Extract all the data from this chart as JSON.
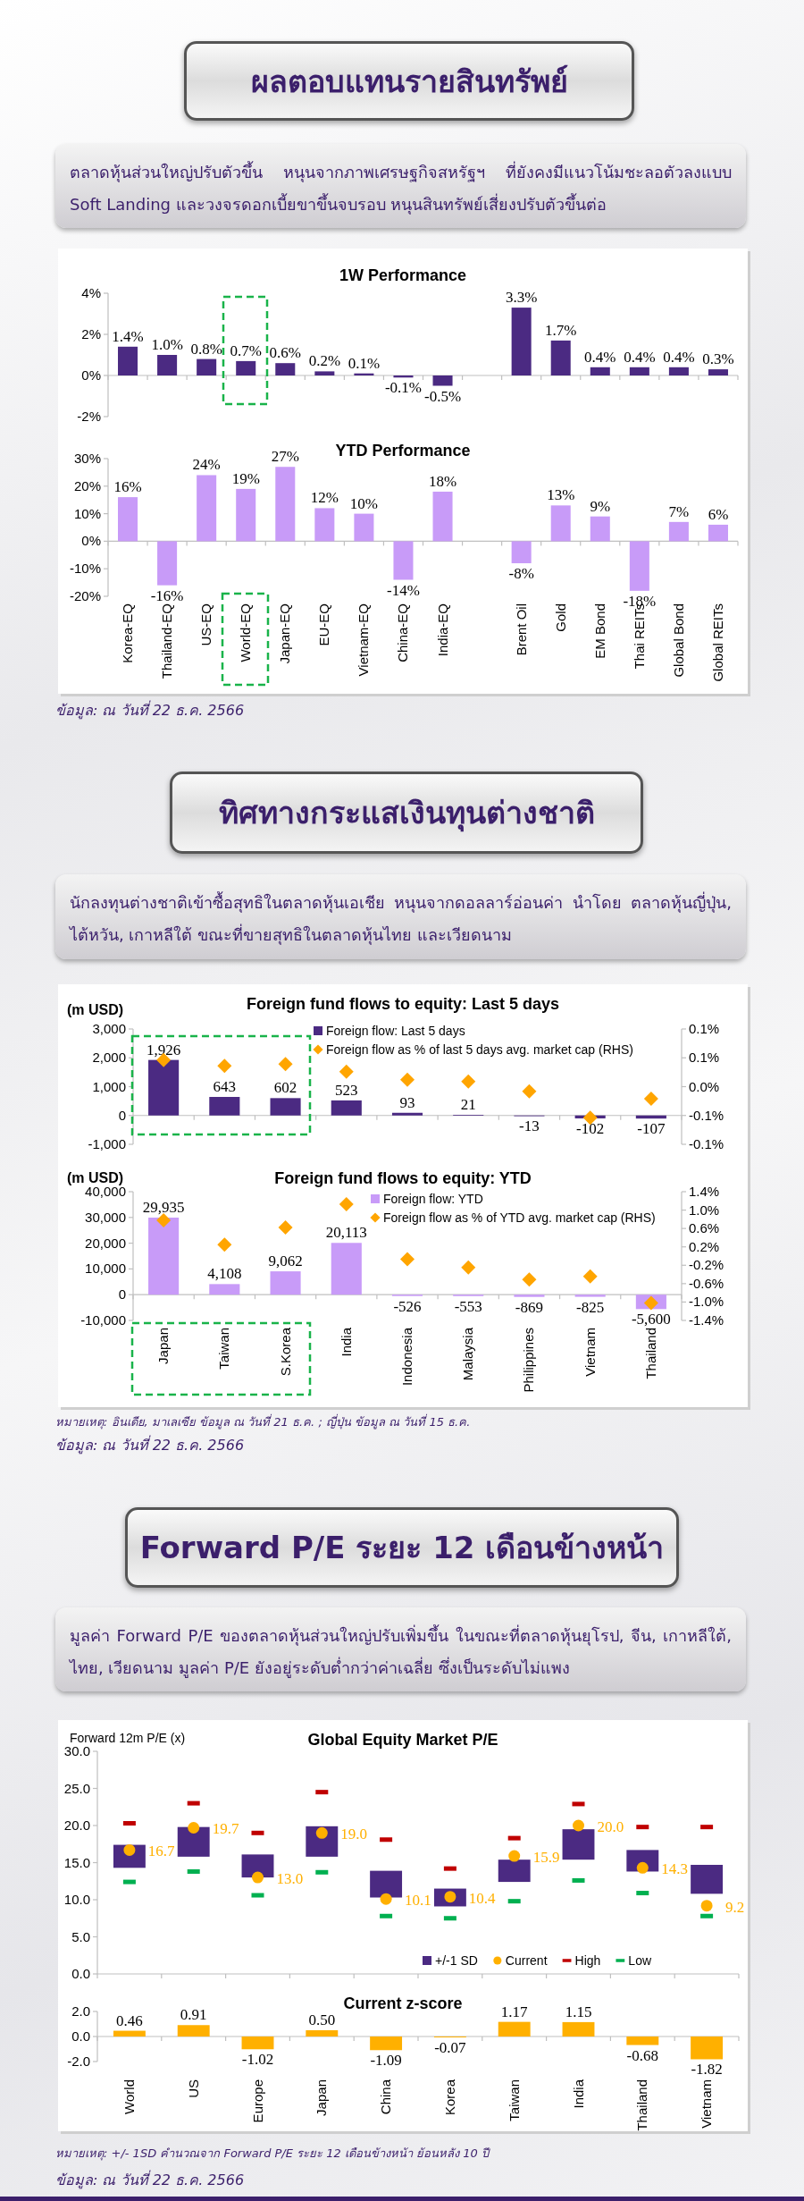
{
  "chart_data": [
    {
      "type": "other",
      "title": "ผลตอบแทนรายสินทรัพย์",
      "subtitle": "ตลาดหุ้นส่วนใหญ่ปรับตัวขึ้น หนุนจากภาพเศรษฐกิจสหรัฐฯ ที่ยังคงมีแนวโน้มชะลอตัวลงแบบ Soft Landing และวงจรดอกเบี้ยขาขึ้นจบรอบ หนุนสินทรัพย์เสี่ยงปรับตัวขึ้นต่อ"
    },
    {
      "type": "bar",
      "title": "1W Performance",
      "values": [
        1.4,
        1.0,
        0.8,
        0.7,
        0.6,
        0.2,
        0.1,
        -0.1,
        -0.5,
        null,
        3.3,
        1.7,
        0.4,
        0.4,
        0.4,
        0.3
      ],
      "value_labels": [
        "1.4%",
        "1.0%",
        "0.8%",
        "0.7%",
        "0.6%",
        "0.2%",
        "0.1%",
        "-0.1%",
        "-0.5%",
        null,
        "3.3%",
        "1.7%",
        "0.4%",
        "0.4%",
        "0.4%",
        "0.3%"
      ],
      "color": "#4b2a82",
      "ylim": [
        -2,
        4
      ],
      "yticks": [
        {
          "value": -2,
          "label": "-2%"
        },
        {
          "value": 0,
          "label": "0%"
        },
        {
          "value": 2,
          "label": "2%"
        },
        {
          "value": 4,
          "label": "4%"
        }
      ],
      "tick_labels": "y"
    },
    {
      "type": "bar",
      "title": "YTD Performance",
      "categories": [
        "Korea-EQ",
        "Thailand-EQ",
        "US-EQ",
        "World-EQ",
        "Japan-EQ",
        "EU-EQ",
        "Vietnam-EQ",
        "China-EQ",
        "India-EQ",
        null,
        "Brent Oil",
        "Gold",
        "EM Bond",
        "Thai REITs",
        "Global Bond",
        "Global REITs"
      ],
      "values": [
        16,
        -16,
        24,
        19,
        27,
        12,
        10,
        -14,
        18,
        null,
        -8,
        13,
        9,
        -18,
        7,
        6
      ],
      "value_labels": [
        "16%",
        "-16%",
        "24%",
        "19%",
        "27%",
        "12%",
        "10%",
        "-14%",
        "18%",
        null,
        "-8%",
        "13%",
        "9%",
        "-18%",
        "7%",
        "6%"
      ],
      "color": "#c89bf8",
      "ylim": [
        -20,
        30
      ],
      "yticks": [
        {
          "value": -20,
          "label": "-20%"
        },
        {
          "value": -10,
          "label": "-10%"
        },
        {
          "value": 0,
          "label": "0%"
        },
        {
          "value": 10,
          "label": "10%"
        },
        {
          "value": 20,
          "label": "20%"
        },
        {
          "value": 30,
          "label": "30%"
        }
      ],
      "annotations": [
        "ข้อมูล: ณ วันที่ 22 ธ.ค. 2566"
      ]
    },
    {
      "type": "other",
      "title": "ทิศทางกระแสเงินทุนต่างชาติ",
      "subtitle": "นักลงทุนต่างชาติเข้าซื้อสุทธิในตลาดหุ้นเอเชีย หนุนจากดอลลาร์อ่อนค่า นำโดย ตลาดหุ้นญี่ปุ่น, ไต้หวัน, เกาหลีใต้ ขณะที่ขายสุทธิในตลาดหุ้นไทย และเวียดนาม"
    },
    {
      "type": "bar",
      "title": "Foreign fund flows to equity: Last 5 days",
      "ylabel": "(m USD)",
      "series": [
        {
          "name": "Foreign flow: Last 5 days",
          "type": "bar",
          "color": "#4b2a82",
          "values": [
            1926,
            643,
            602,
            523,
            93,
            21,
            -13,
            -102,
            -107
          ],
          "value_labels": [
            "1,926",
            "643",
            "602",
            "523",
            "93",
            "21",
            "-13",
            "-102",
            "-107"
          ]
        },
        {
          "name": "Foreign flow as % of last 5 days avg. market cap (RHS)",
          "type": "scatter",
          "axis": "y2",
          "marker": "diamond",
          "color": "#ffa500",
          "values": [
            0.046,
            0.036,
            0.039,
            0.026,
            0.012,
            0.009,
            -0.008,
            -0.054,
            -0.021
          ]
        }
      ],
      "ylim": [
        -1000,
        3000
      ],
      "yticks": [
        {
          "value": -1000,
          "label": "-1,000"
        },
        0,
        {
          "value": 1000,
          "label": "1,000"
        },
        {
          "value": 2000,
          "label": "2,000"
        },
        {
          "value": 3000,
          "label": "3,000"
        }
      ],
      "y2lim": [
        -0.1,
        0.1
      ],
      "y2ticks": [
        {
          "value": -0.1,
          "label": "-0.1%"
        },
        {
          "value": -0.05,
          "label": "-0.1%"
        },
        {
          "value": 0,
          "label": "0.0%"
        },
        {
          "value": 0.05,
          "label": "0.1%"
        },
        {
          "value": 0.1,
          "label": "0.1%"
        }
      ],
      "legend": "top",
      "tick_labels": "y"
    },
    {
      "type": "bar",
      "title": "Foreign fund flows to equity: YTD",
      "ylabel": "(m USD)",
      "categories": [
        "Japan",
        "Taiwan",
        "S.Korea",
        "India",
        "Indonesia",
        "Malaysia",
        "Philippines",
        "Vietnam",
        "Thailand"
      ],
      "series": [
        {
          "name": "Foreign flow: YTD",
          "type": "bar",
          "color": "#c89bf8",
          "values": [
            29935,
            4108,
            9062,
            20113,
            -526,
            -553,
            -869,
            -825,
            -5600
          ],
          "value_labels": [
            "29,935",
            "4,108",
            "9,062",
            "20,113",
            "-526",
            "-553",
            "-869",
            "-825",
            "-5,600"
          ]
        },
        {
          "name": "Foreign flow as % of YTD avg. market cap (RHS)",
          "type": "scatter",
          "axis": "y2",
          "marker": "diamond",
          "color": "#ffa500",
          "values": [
            0.78,
            0.25,
            0.62,
            1.13,
            -0.07,
            -0.25,
            -0.51,
            -0.44,
            -1.02
          ]
        }
      ],
      "ylim": [
        -10000,
        40000
      ],
      "yticks": [
        {
          "value": -10000,
          "label": "-10,000"
        },
        0,
        {
          "value": 10000,
          "label": "10,000"
        },
        {
          "value": 20000,
          "label": "20,000"
        },
        {
          "value": 30000,
          "label": "30,000"
        },
        {
          "value": 40000,
          "label": "40,000"
        }
      ],
      "y2lim": [
        -1.4,
        1.4
      ],
      "y2ticks": [
        {
          "value": -1.4,
          "label": "-1.4%"
        },
        {
          "value": -1.0,
          "label": "-1.0%"
        },
        {
          "value": -0.6,
          "label": "-0.6%"
        },
        {
          "value": -0.2,
          "label": "-0.2%"
        },
        {
          "value": 0.2,
          "label": "0.2%"
        },
        {
          "value": 0.6,
          "label": "0.6%"
        },
        {
          "value": 1.0,
          "label": "1.0%"
        },
        {
          "value": 1.4,
          "label": "1.4%"
        }
      ],
      "legend": "top",
      "annotations": [
        "หมายเหตุ: อินเดีย, มาเลเซีย ข้อมูล ณ วันที่ 21 ธ.ค. ; ญี่ปุ่น ข้อมูล ณ วันที่ 15 ธ.ค.",
        "ข้อมูล: ณ วันที่ 22 ธ.ค. 2566"
      ]
    },
    {
      "type": "other",
      "title": "Forward P/E ระยะ 12 เดือนข้างหน้า",
      "subtitle": "มูลค่า Forward P/E ของตลาดหุ้นส่วนใหญ่ปรับเพิ่มขึ้น ในขณะที่ตลาดหุ้นยุโรป, จีน, เกาหลีใต้, ไทย, เวียดนาม มูลค่า P/E ยังอยู่ระดับต่ำกว่าค่าเฉลี่ย ซึ่งเป็นระดับไม่แพง"
    },
    {
      "type": "bar",
      "title": "Global Equity Market P/E",
      "ylabel": "Forward 12m P/E (x)",
      "series": [
        {
          "name": "+/-1 SD",
          "type": "bar",
          "color": "#4b2a82",
          "base": [
            14.3,
            15.8,
            13.0,
            15.8,
            10.3,
            9.1,
            12.4,
            15.4,
            13.8,
            10.8
          ],
          "values": [
            3.1,
            4.0,
            3.1,
            4.1,
            3.6,
            2.4,
            3.0,
            4.1,
            2.9,
            3.9
          ]
        },
        {
          "name": "Current",
          "type": "scatter",
          "marker": "circle",
          "color": "#ffb000",
          "values": [
            16.7,
            19.7,
            13.0,
            19.0,
            10.1,
            10.4,
            15.9,
            20.0,
            14.3,
            9.2
          ],
          "value_labels": [
            "16.7",
            "19.7",
            "13.0",
            "19.0",
            "10.1",
            "10.4",
            "15.9",
            "20.0",
            "14.3",
            "9.2"
          ]
        },
        {
          "name": "High",
          "type": "scatter",
          "marker": "square",
          "color": "#c00000",
          "values": [
            20.3,
            23.0,
            19.0,
            24.5,
            18.1,
            14.2,
            18.3,
            22.9,
            19.8,
            19.8
          ]
        },
        {
          "name": "Low",
          "type": "scatter",
          "marker": "square",
          "color": "#00b050",
          "values": [
            12.4,
            13.8,
            10.6,
            13.7,
            7.8,
            7.5,
            9.8,
            12.6,
            10.9,
            7.8
          ]
        }
      ],
      "ylim": [
        0,
        30
      ],
      "yticks": [
        {
          "value": 0,
          "label": "0.0"
        },
        {
          "value": 5,
          "label": "5.0"
        },
        {
          "value": 10,
          "label": "10.0"
        },
        {
          "value": 15,
          "label": "15.0"
        },
        {
          "value": 20,
          "label": "20.0"
        },
        {
          "value": 25,
          "label": "25.0"
        },
        {
          "value": 30,
          "label": "30.0"
        }
      ],
      "legend": "bottom right",
      "tick_labels": "y"
    },
    {
      "type": "bar",
      "title": "Current z-score",
      "categories": [
        "World",
        "US",
        "Europe",
        "Japan",
        "China",
        "Korea",
        "Taiwan",
        "India",
        "Thailand",
        "Vietnam"
      ],
      "values": [
        0.46,
        0.91,
        -1.02,
        0.5,
        -1.09,
        -0.07,
        1.17,
        1.15,
        -0.68,
        -1.82
      ],
      "value_labels": [
        "0.46",
        "0.91",
        "-1.02",
        "0.50",
        "-1.09",
        "-0.07",
        "1.17",
        "1.15",
        "-0.68",
        "-1.82"
      ],
      "color": "#ffb000",
      "ylim": [
        -2,
        2
      ],
      "yticks": [
        {
          "value": -2,
          "label": "-2.0"
        },
        {
          "value": 0,
          "label": "0.0"
        },
        {
          "value": 2,
          "label": "2.0"
        }
      ],
      "annotations": [
        "หมายเหตุ: +/- 1SD คำนวณจาก Forward P/E ระยะ 12 เดือนข้างหน้า ย้อนหลัง 10 ปี",
        "ข้อมูล: ณ วันที่ 22 ธ.ค. 2566"
      ]
    }
  ]
}
